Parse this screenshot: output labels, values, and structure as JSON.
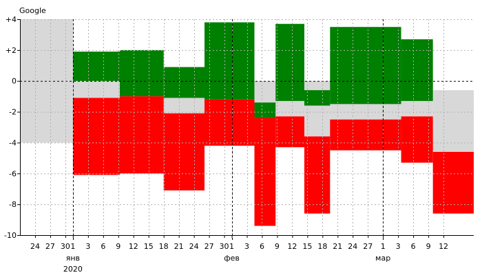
{
  "chart_data": {
    "type": "bar",
    "title": "Google",
    "xlabel": "",
    "ylabel": "",
    "ylim": [
      -10,
      4
    ],
    "y_ticks": [
      {
        "value": 4,
        "label": "+4"
      },
      {
        "value": 2,
        "label": "+2"
      },
      {
        "value": 0,
        "label": "0"
      },
      {
        "value": -2,
        "label": "-2"
      },
      {
        "value": -4,
        "label": "-4"
      },
      {
        "value": -6,
        "label": "-6"
      },
      {
        "value": -8,
        "label": "-8"
      },
      {
        "value": -10,
        "label": "-10"
      }
    ],
    "x_range": [
      0,
      30
    ],
    "x_ticks": [
      {
        "x": 1,
        "label": "24"
      },
      {
        "x": 2,
        "label": "27"
      },
      {
        "x": 3,
        "label": "30"
      },
      {
        "x": 3.5,
        "label": "1"
      },
      {
        "x": 4.5,
        "label": "3"
      },
      {
        "x": 5.5,
        "label": "6"
      },
      {
        "x": 6.5,
        "label": "9"
      },
      {
        "x": 7.5,
        "label": "12"
      },
      {
        "x": 8.5,
        "label": "15"
      },
      {
        "x": 9.5,
        "label": "18"
      },
      {
        "x": 10.5,
        "label": "21"
      },
      {
        "x": 11.5,
        "label": "24"
      },
      {
        "x": 12.5,
        "label": "27"
      },
      {
        "x": 13.5,
        "label": "30"
      },
      {
        "x": 14,
        "label": "1"
      },
      {
        "x": 15,
        "label": "3"
      },
      {
        "x": 16,
        "label": "6"
      },
      {
        "x": 17,
        "label": "9"
      },
      {
        "x": 18,
        "label": "12"
      },
      {
        "x": 19,
        "label": "15"
      },
      {
        "x": 20,
        "label": "18"
      },
      {
        "x": 21,
        "label": "21"
      },
      {
        "x": 22,
        "label": "24"
      },
      {
        "x": 23,
        "label": "27"
      },
      {
        "x": 24,
        "label": "1"
      },
      {
        "x": 25,
        "label": "3"
      },
      {
        "x": 26,
        "label": "6"
      },
      {
        "x": 27,
        "label": "9"
      },
      {
        "x": 28,
        "label": "12"
      }
    ],
    "month_labels": [
      {
        "x": 3.5,
        "label": "янв"
      },
      {
        "x": 14,
        "label": "фев"
      },
      {
        "x": 24,
        "label": "мар"
      }
    ],
    "year_labels": [
      {
        "x": 3.5,
        "label": "2020"
      }
    ],
    "month_dividers": [
      3.5,
      14,
      24
    ],
    "gray_band": [
      {
        "x0": 0,
        "x1": 3.5,
        "low": -4,
        "high": 4
      },
      {
        "x0": 3.5,
        "x1": 6.6,
        "low": -1.1,
        "high": 1.9
      },
      {
        "x0": 6.6,
        "x1": 9.5,
        "low": -1.0,
        "high": 2.0
      },
      {
        "x0": 9.5,
        "x1": 12.2,
        "low": -2.1,
        "high": 0.9
      },
      {
        "x0": 12.2,
        "x1": 15.5,
        "low": -1.2,
        "high": 3.8
      },
      {
        "x0": 15.5,
        "x1": 16.9,
        "low": -2.4,
        "high": 0
      },
      {
        "x0": 16.9,
        "x1": 18.8,
        "low": -2.3,
        "high": 0
      },
      {
        "x0": 18.8,
        "x1": 20.5,
        "low": -3.6,
        "high": 0
      },
      {
        "x0": 20.5,
        "x1": 25.2,
        "low": -2.5,
        "high": 0
      },
      {
        "x0": 25.2,
        "x1": 27.3,
        "low": -2.3,
        "high": 0
      },
      {
        "x0": 27.3,
        "x1": 30,
        "low": -4.6,
        "high": -0.6
      }
    ],
    "series": [
      {
        "bars": [
          {
            "x0": 3.5,
            "x1": 6.6,
            "low": 0,
            "high": 1.9
          },
          {
            "x0": 6.6,
            "x1": 9.5,
            "low": -1.0,
            "high": 2.0
          },
          {
            "x0": 9.5,
            "x1": 12.2,
            "low": -1.1,
            "high": 0.9
          },
          {
            "x0": 12.2,
            "x1": 15.5,
            "low": -1.2,
            "high": 3.8
          },
          {
            "x0": 15.5,
            "x1": 16.9,
            "low": -2.4,
            "high": -1.4
          },
          {
            "x0": 16.9,
            "x1": 18.8,
            "low": -1.3,
            "high": 3.7
          },
          {
            "x0": 18.8,
            "x1": 20.5,
            "low": -1.6,
            "high": -0.6
          },
          {
            "x0": 20.5,
            "x1": 25.2,
            "low": -1.5,
            "high": 3.5
          },
          {
            "x0": 25.2,
            "x1": 27.3,
            "low": -1.3,
            "high": 2.7
          }
        ]
      },
      {
        "bars": [
          {
            "x0": 3.5,
            "x1": 6.6,
            "low": -6.1,
            "high": -1.1
          },
          {
            "x0": 6.6,
            "x1": 9.5,
            "low": -6.0,
            "high": -1.0
          },
          {
            "x0": 9.5,
            "x1": 12.2,
            "low": -7.1,
            "high": -2.1
          },
          {
            "x0": 12.2,
            "x1": 15.5,
            "low": -4.2,
            "high": -1.2
          },
          {
            "x0": 15.5,
            "x1": 16.9,
            "low": -9.4,
            "high": -2.4
          },
          {
            "x0": 16.9,
            "x1": 18.8,
            "low": -4.3,
            "high": -2.3
          },
          {
            "x0": 18.8,
            "x1": 20.5,
            "low": -8.6,
            "high": -3.6
          },
          {
            "x0": 20.5,
            "x1": 25.2,
            "low": -4.5,
            "high": -2.5
          },
          {
            "x0": 25.2,
            "x1": 27.3,
            "low": -5.3,
            "high": -2.3
          },
          {
            "x0": 27.3,
            "x1": 30,
            "low": -8.6,
            "high": -4.6
          }
        ]
      }
    ],
    "colors": {
      "gain": "#008000",
      "loss": "#ff0000",
      "band": "#d8d8d8",
      "grid": "#b0b0b0",
      "axis": "#000000"
    },
    "grid": true,
    "legend": "none"
  }
}
